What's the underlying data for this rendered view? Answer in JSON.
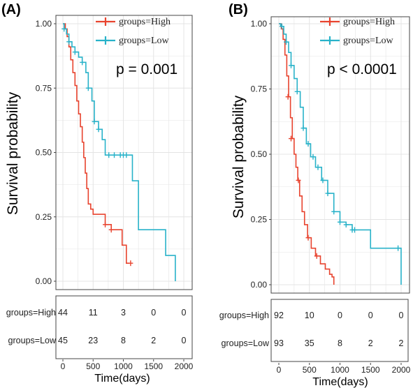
{
  "colors": {
    "high": "#E8432E",
    "low": "#28B2C9",
    "grid": "#e4e4e4",
    "frame": "#444444"
  },
  "chart_data": [
    {
      "panel": "(A)",
      "type": "line",
      "subtype": "kaplan-meier",
      "ylabel": "Survival probability",
      "xlabel": "Time(days)",
      "xlim": [
        0,
        2000
      ],
      "ylim": [
        0,
        1
      ],
      "xticks": [
        "0",
        "500",
        "1000",
        "1500",
        "2000"
      ],
      "yticks": [
        "0.00",
        "0.25",
        "0.50",
        "0.75",
        "1.00"
      ],
      "pvalue": "p = 0.001",
      "legend_position": "top-right",
      "series": [
        {
          "name": "groups=High",
          "color": "#E8432E",
          "x": [
            0,
            40,
            70,
            100,
            130,
            165,
            200,
            230,
            260,
            290,
            320,
            345,
            370,
            395,
            420,
            460,
            500,
            560,
            700,
            800,
            900,
            980,
            1050,
            1100
          ],
          "y": [
            1.0,
            0.98,
            0.95,
            0.91,
            0.86,
            0.81,
            0.76,
            0.7,
            0.65,
            0.6,
            0.54,
            0.48,
            0.42,
            0.36,
            0.3,
            0.28,
            0.26,
            0.26,
            0.22,
            0.2,
            0.2,
            0.14,
            0.07,
            0.07
          ],
          "censor_x": [
            700,
            800,
            1120
          ],
          "censor_y": [
            0.22,
            0.2,
            0.07
          ]
        },
        {
          "name": "groups=Low",
          "color": "#28B2C9",
          "x": [
            0,
            20,
            60,
            100,
            150,
            200,
            260,
            320,
            380,
            420,
            480,
            520,
            590,
            650,
            700,
            1100,
            1150,
            1250,
            1450,
            1700,
            1850,
            1860
          ],
          "y": [
            1.0,
            0.98,
            0.96,
            0.93,
            0.91,
            0.89,
            0.87,
            0.85,
            0.81,
            0.75,
            0.7,
            0.62,
            0.59,
            0.55,
            0.49,
            0.49,
            0.39,
            0.2,
            0.2,
            0.1,
            0.1,
            0.0
          ],
          "censor_x": [
            20,
            100,
            200,
            320,
            420,
            520,
            590,
            760,
            850,
            950,
            1000,
            1050
          ],
          "censor_y": [
            0.98,
            0.93,
            0.89,
            0.85,
            0.75,
            0.62,
            0.59,
            0.49,
            0.49,
            0.49,
            0.49,
            0.49
          ]
        }
      ],
      "risk_table": {
        "times": [
          "0",
          "500",
          "1000",
          "1500",
          "2000"
        ],
        "rows": [
          {
            "label": "groups=High",
            "values": [
              "44",
              "11",
              "3",
              "0",
              "0"
            ]
          },
          {
            "label": "groups=Low",
            "values": [
              "45",
              "23",
              "8",
              "2",
              "0"
            ]
          }
        ]
      }
    },
    {
      "panel": "(B)",
      "type": "line",
      "subtype": "kaplan-meier",
      "ylabel": "Survival probability",
      "xlabel": "Time(days)",
      "xlim": [
        0,
        2000
      ],
      "ylim": [
        0,
        1
      ],
      "xticks": [
        "0",
        "500",
        "1000",
        "1500",
        "2000"
      ],
      "yticks": [
        "0.00",
        "0.25",
        "0.50",
        "0.75",
        "1.00"
      ],
      "pvalue": "p < 0.0001",
      "legend_position": "top-right",
      "series": [
        {
          "name": "groups=High",
          "color": "#E8432E",
          "x": [
            0,
            40,
            70,
            100,
            130,
            160,
            190,
            220,
            250,
            280,
            310,
            340,
            380,
            420,
            470,
            530,
            600,
            680,
            760,
            830,
            870,
            900
          ],
          "y": [
            1.0,
            0.98,
            0.94,
            0.88,
            0.8,
            0.72,
            0.64,
            0.56,
            0.5,
            0.45,
            0.4,
            0.34,
            0.28,
            0.23,
            0.18,
            0.14,
            0.11,
            0.08,
            0.06,
            0.04,
            0.03,
            0.0
          ],
          "censor_x": [
            150,
            200,
            320,
            480,
            620
          ],
          "censor_y": [
            0.72,
            0.56,
            0.4,
            0.18,
            0.11
          ]
        },
        {
          "name": "groups=Low",
          "color": "#28B2C9",
          "x": [
            0,
            30,
            80,
            120,
            160,
            200,
            250,
            300,
            350,
            400,
            450,
            520,
            600,
            700,
            800,
            900,
            1000,
            1100,
            1200,
            1280,
            1500,
            1900,
            2000
          ],
          "y": [
            1.0,
            0.99,
            0.96,
            0.93,
            0.89,
            0.84,
            0.79,
            0.74,
            0.68,
            0.6,
            0.54,
            0.49,
            0.45,
            0.4,
            0.35,
            0.28,
            0.24,
            0.23,
            0.21,
            0.21,
            0.14,
            0.14,
            0.0
          ],
          "censor_x": [
            50,
            120,
            200,
            300,
            400,
            480,
            560,
            640,
            720,
            800,
            900,
            1000,
            1100,
            1200,
            1240,
            1950
          ],
          "censor_y": [
            0.99,
            0.93,
            0.84,
            0.74,
            0.6,
            0.54,
            0.49,
            0.45,
            0.4,
            0.35,
            0.28,
            0.24,
            0.23,
            0.21,
            0.21,
            0.14
          ]
        }
      ],
      "risk_table": {
        "times": [
          "0",
          "500",
          "1000",
          "1500",
          "2000"
        ],
        "rows": [
          {
            "label": "groups=High",
            "values": [
              "92",
              "10",
              "0",
              "0",
              "0"
            ]
          },
          {
            "label": "groups=Low",
            "values": [
              "93",
              "35",
              "8",
              "2",
              "2"
            ]
          }
        ]
      }
    }
  ]
}
